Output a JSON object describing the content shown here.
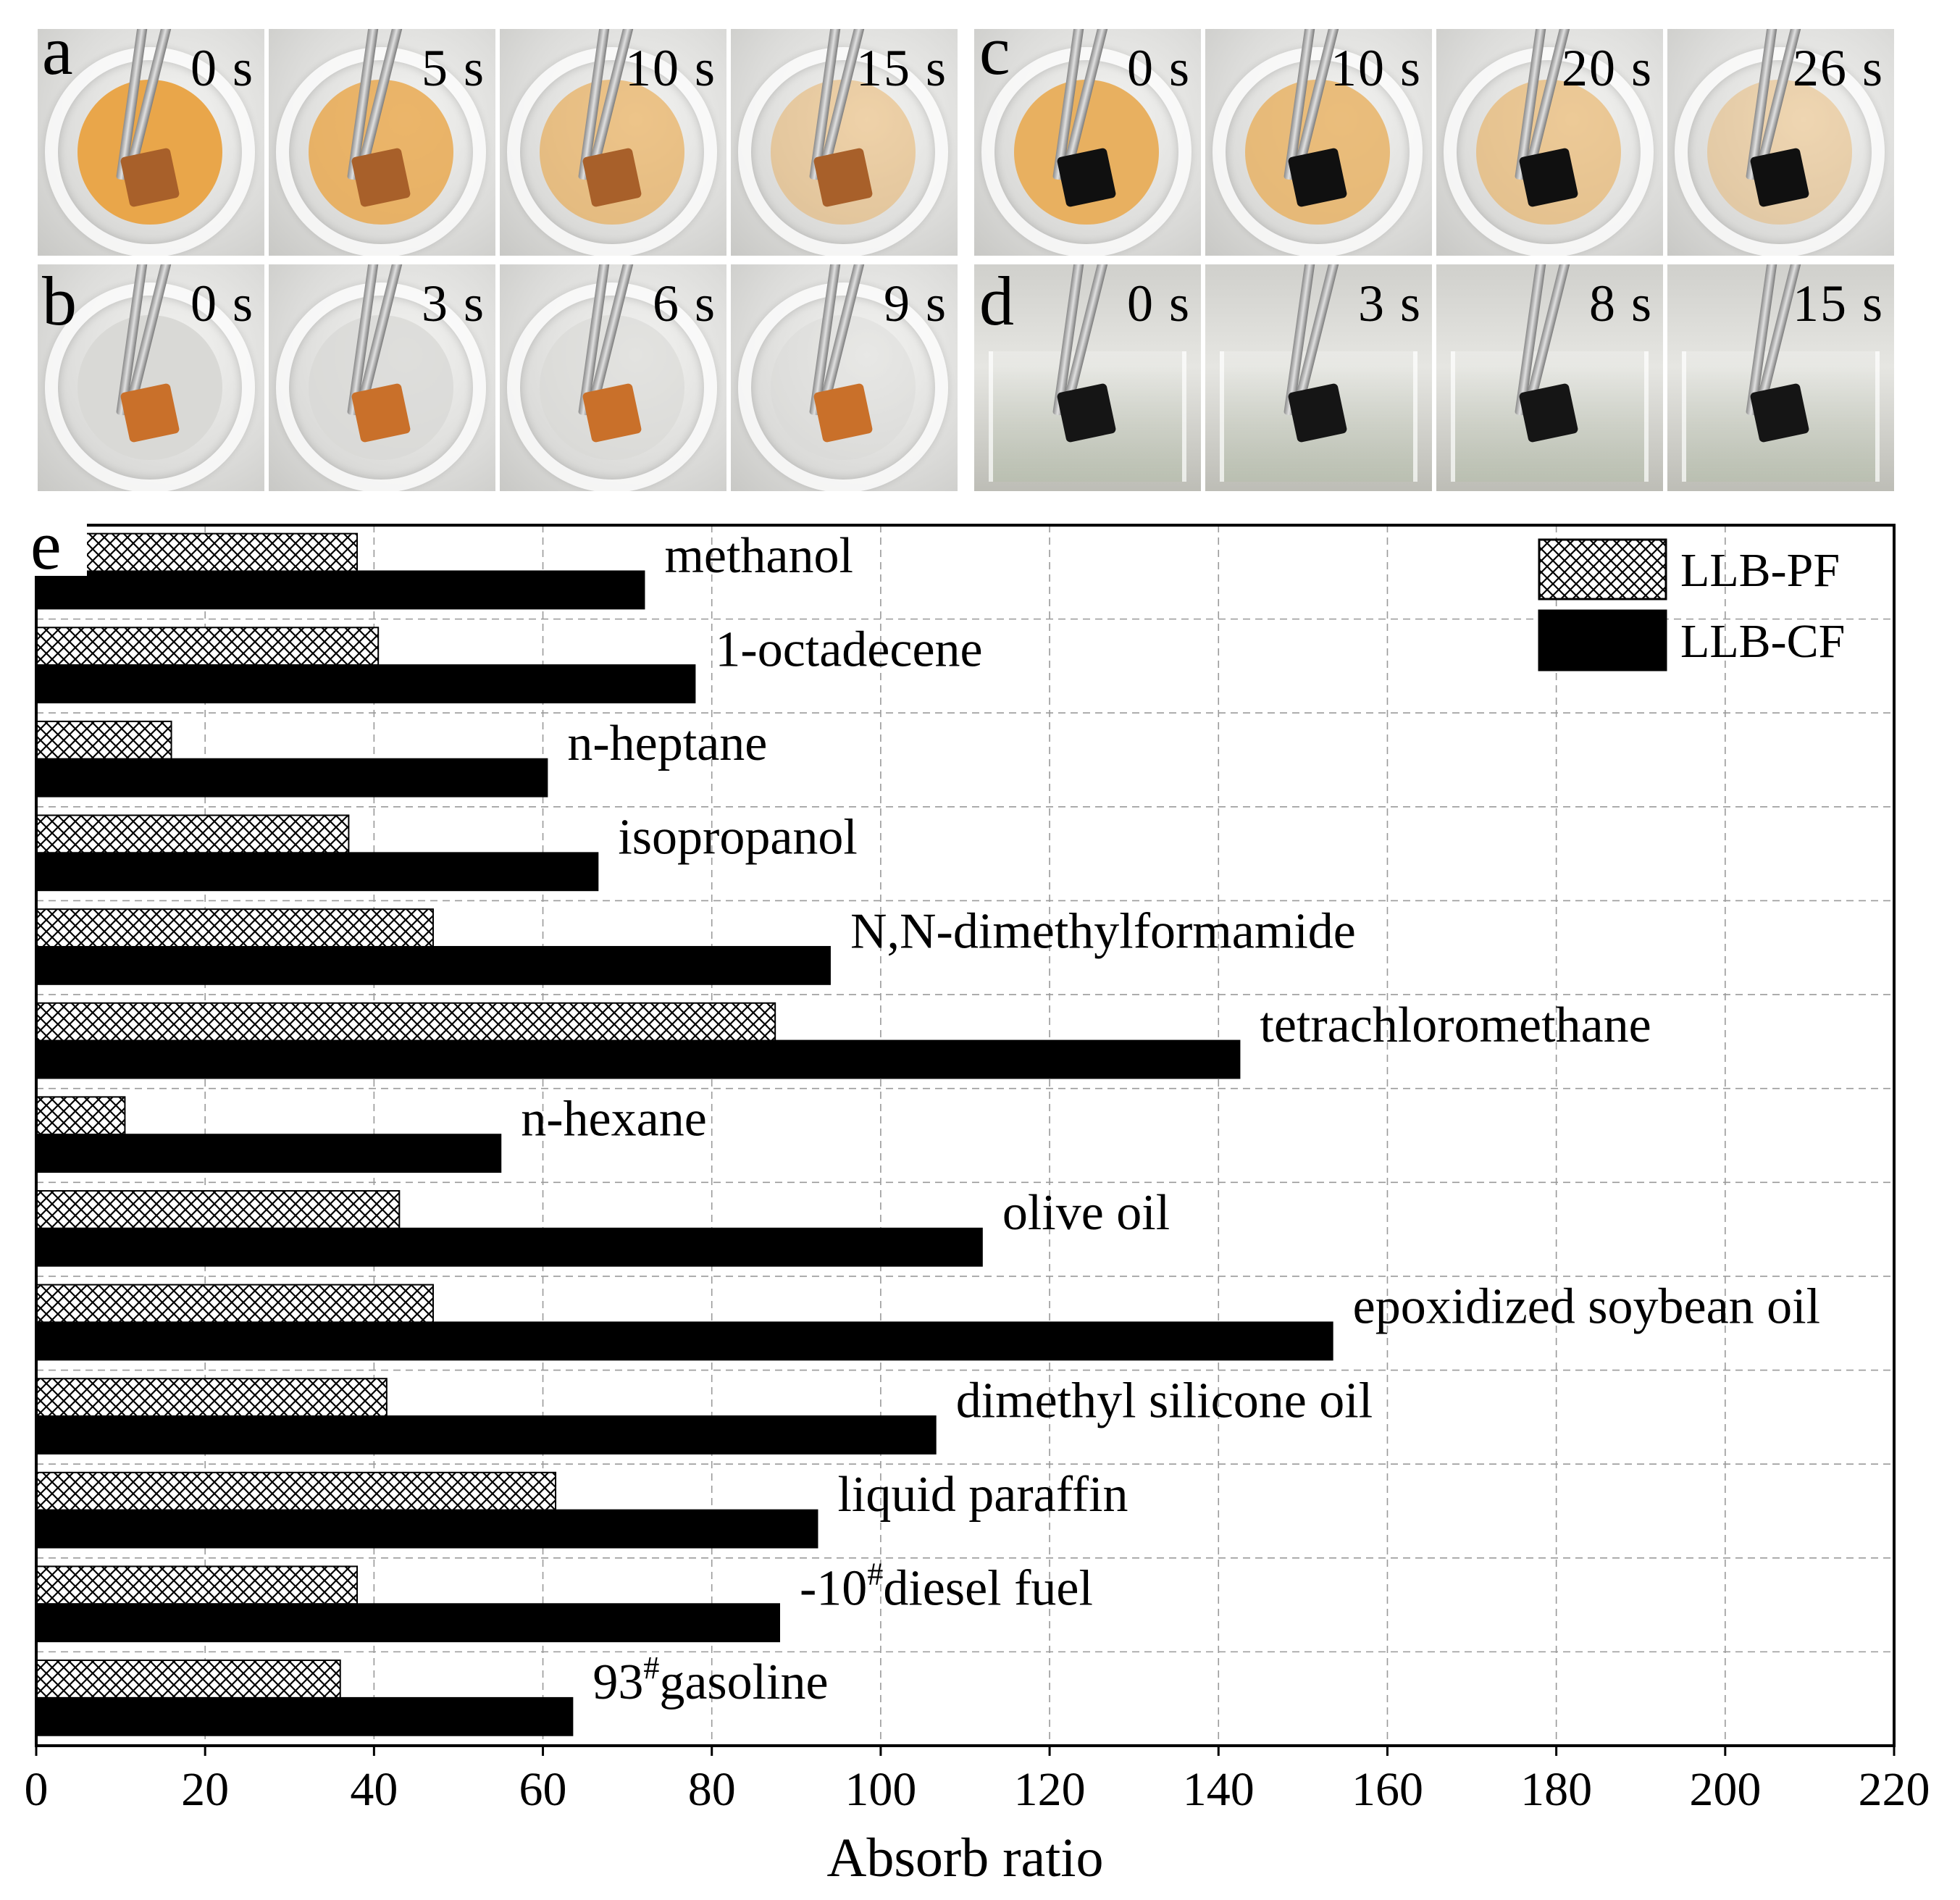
{
  "panels": {
    "a": {
      "letter": "a",
      "times": [
        "0 s",
        "5 s",
        "10 s",
        "15 s"
      ],
      "liquid_color": "#e9a64a",
      "sponge_color": "#a8602a"
    },
    "b": {
      "letter": "b",
      "times": [
        "0 s",
        "3 s",
        "6 s",
        "9 s"
      ],
      "liquid_color": "#d9d9d6",
      "sponge_color": "#c9702a"
    },
    "c": {
      "letter": "c",
      "times": [
        "0 s",
        "10 s",
        "20 s",
        "26 s"
      ],
      "liquid_color": "#e8b060",
      "sponge_color": "#101010"
    },
    "d": {
      "letter": "d",
      "times": [
        "0 s",
        "3 s",
        "8 s",
        "15 s"
      ],
      "liquid_color": "#c8ccb8",
      "sponge_color": "#151515"
    }
  },
  "chart_data": {
    "type": "bar",
    "orientation": "horizontal",
    "panel_letter": "e",
    "categories": [
      "methanol",
      "1-octadecene",
      "n-heptane",
      "isopropanol",
      "N,N-dimethylformamide",
      "tetrachloromethane",
      "n-hexane",
      "olive oil",
      "epoxidized soybean oil",
      "dimethyl silicone oil",
      "liquid paraffin",
      "-10#diesel fuel",
      "93#gasoline"
    ],
    "label_parts": [
      {
        "pre": "methanol",
        "sup": "",
        "post": ""
      },
      {
        "pre": "1-octadecene",
        "sup": "",
        "post": ""
      },
      {
        "pre": "n-heptane",
        "sup": "",
        "post": ""
      },
      {
        "pre": "isopropanol",
        "sup": "",
        "post": ""
      },
      {
        "pre": "N,N-dimethylformamide",
        "sup": "",
        "post": ""
      },
      {
        "pre": "tetrachloromethane",
        "sup": "",
        "post": ""
      },
      {
        "pre": "n-hexane",
        "sup": "",
        "post": ""
      },
      {
        "pre": "olive oil",
        "sup": "",
        "post": ""
      },
      {
        "pre": "epoxidized soybean oil",
        "sup": "",
        "post": ""
      },
      {
        "pre": "dimethyl silicone oil",
        "sup": "",
        "post": ""
      },
      {
        "pre": "liquid paraffin",
        "sup": "",
        "post": ""
      },
      {
        "pre": "-10",
        "sup": "#",
        "post": "diesel fuel"
      },
      {
        "pre": "93",
        "sup": "#",
        "post": "gasoline"
      }
    ],
    "series": [
      {
        "name": "LLB-PF",
        "pattern": "crosshatch",
        "values": [
          38,
          40.5,
          16,
          37,
          47,
          87.5,
          10.5,
          43,
          47,
          41.5,
          61.5,
          38,
          36
        ]
      },
      {
        "name": "LLB-CF",
        "pattern": "solid",
        "color": "#000000",
        "values": [
          72,
          78,
          60.5,
          66.5,
          94,
          142.5,
          55,
          112,
          153.5,
          106.5,
          92.5,
          88,
          63.5
        ]
      }
    ],
    "xlabel": "Absorb ratio",
    "ylabel": "",
    "xlim": [
      0,
      220
    ],
    "xticks": [
      0,
      20,
      40,
      60,
      80,
      100,
      120,
      140,
      160,
      180,
      200,
      220
    ],
    "grid": true,
    "legend_position": "top-right"
  }
}
